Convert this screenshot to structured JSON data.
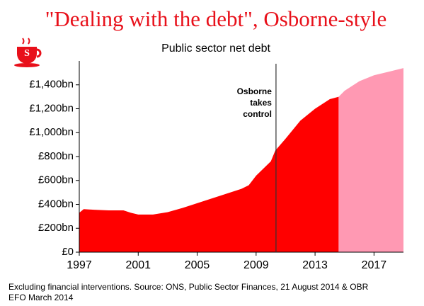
{
  "chart_data": {
    "type": "area",
    "title": "\"Dealing with the debt\", Osborne-style",
    "subtitle": "Public sector net debt",
    "series": [
      {
        "color": "#ff0000",
        "x": [
          1997,
          1997.3,
          1998,
          1999,
          2000,
          2000.5,
          2001,
          2002,
          2003,
          2004,
          2005,
          2006,
          2007,
          2008,
          2008.5,
          2009,
          2009.5,
          2010,
          2010.3,
          2011,
          2012,
          2013,
          2014,
          2014.6
        ],
        "values": [
          330,
          360,
          355,
          350,
          350,
          330,
          315,
          315,
          335,
          370,
          410,
          450,
          490,
          530,
          560,
          640,
          700,
          760,
          850,
          950,
          1100,
          1200,
          1280,
          1300
        ]
      },
      {
        "color": "#ff99b3",
        "x": [
          2014.6,
          2015,
          2016,
          2017,
          2018,
          2019
        ],
        "values": [
          1300,
          1350,
          1430,
          1480,
          1510,
          1540
        ]
      }
    ],
    "xlim": [
      1997,
      2019
    ],
    "xticks": [
      1997,
      2001,
      2005,
      2009,
      2013,
      2017
    ],
    "ylim": [
      0,
      1600
    ],
    "yticks": [
      {
        "value": 0,
        "label": "£0"
      },
      {
        "value": 200,
        "label": "£200bn"
      },
      {
        "value": 400,
        "label": "£400bn"
      },
      {
        "value": 600,
        "label": "£600bn"
      },
      {
        "value": 800,
        "label": "£800bn"
      },
      {
        "value": 1000,
        "label": "£1,000bn"
      },
      {
        "value": 1200,
        "label": "£1,200bn"
      },
      {
        "value": 1400,
        "label": "£1,400bn"
      }
    ],
    "annotation": {
      "lines": [
        "Osborne",
        "takes",
        "control"
      ],
      "x": 2010.35
    },
    "footnote": [
      "Excluding financial interventions. Source: ONS, Public Sector Finances, 21 August 2014 & OBR",
      "EFO March 2014"
    ]
  }
}
